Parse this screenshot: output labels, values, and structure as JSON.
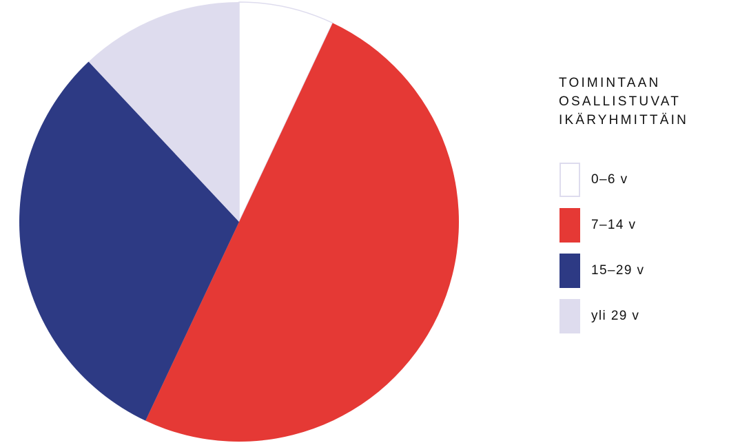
{
  "chart_data": {
    "type": "pie",
    "title": "TOIMINTAAN OSALLISTUVAT IKÄRYHMITTÄIN",
    "title_lines": [
      "TOIMINTAAN",
      "OSALLISTUVAT",
      "IKÄRYHMITTÄIN"
    ],
    "start_angle_deg": 0,
    "direction": "clockwise",
    "legend_position": "right",
    "slices": [
      {
        "label": "0–6 v",
        "value": 7,
        "color": "#ffffff",
        "stroke": "#dedcee"
      },
      {
        "label": "7–14 v",
        "value": 50,
        "color": "#e53935",
        "stroke": "none"
      },
      {
        "label": "15–29 v",
        "value": 31,
        "color": "#2d3a84",
        "stroke": "none"
      },
      {
        "label": "yli 29 v",
        "value": 12,
        "color": "#dedcee",
        "stroke": "none"
      }
    ]
  }
}
